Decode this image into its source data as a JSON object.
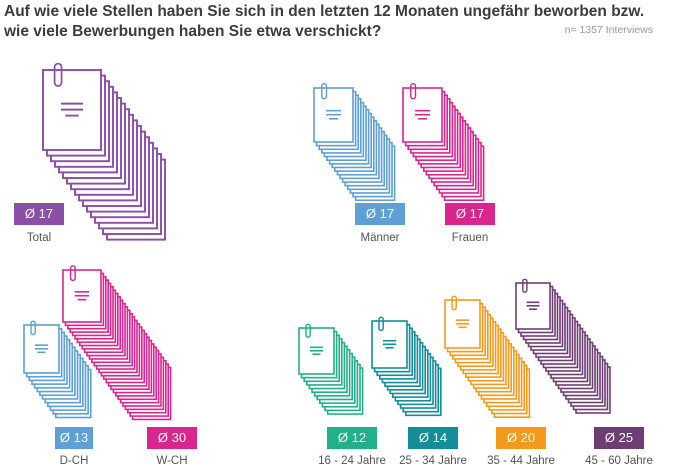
{
  "title": {
    "line1": "Auf wie viele Stellen haben Sie sich in den letzten 12 Monaten ungefähr beworben bzw.",
    "line2": "wie viele Bewerbungen haben Sie etwa verschickt?"
  },
  "sample_note": "n= 1357 Interviews",
  "colors": {
    "purple": "#8d4fa6",
    "blue": "#5e9fd6",
    "magenta": "#d9258e",
    "green": "#21b08a",
    "teal": "#138d99",
    "orange": "#f39a1c",
    "plum": "#6e3d73"
  },
  "chart_data": {
    "type": "pictogram",
    "unit": "Ø",
    "groups": [
      {
        "name": "Total",
        "badge": "Ø 17",
        "value": 17,
        "color": "#8d4fa6"
      },
      {
        "name": "Männer",
        "badge": "Ø 17",
        "value": 17,
        "color": "#5e9fd6"
      },
      {
        "name": "Frauen",
        "badge": "Ø 17",
        "value": 17,
        "color": "#d9258e"
      },
      {
        "name": "D-CH",
        "badge": "Ø 13",
        "value": 13,
        "color": "#5e9fd6"
      },
      {
        "name": "W-CH",
        "badge": "Ø 30",
        "value": 30,
        "color": "#d9258e"
      },
      {
        "name": "16 - 24 Jahre",
        "badge": "Ø 12",
        "value": 12,
        "color": "#21b08a"
      },
      {
        "name": "25 - 34 Jahre",
        "badge": "Ø 14",
        "value": 14,
        "color": "#138d99"
      },
      {
        "name": "35 - 44 Jahre",
        "badge": "Ø 20",
        "value": 20,
        "color": "#f39a1c"
      },
      {
        "name": "45 - 60 Jahre",
        "badge": "Ø 25",
        "value": 25,
        "color": "#6e3d73"
      }
    ]
  }
}
